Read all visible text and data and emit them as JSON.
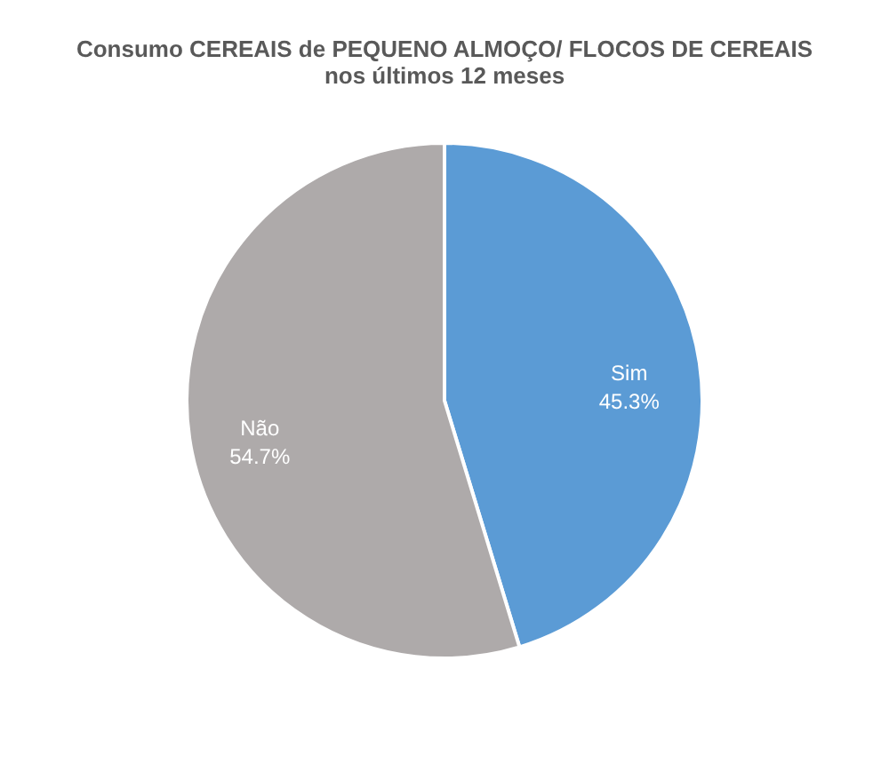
{
  "chart_data": {
    "type": "pie",
    "title": [
      "Consumo CEREAIS de PEQUENO ALMOÇO/ FLOCOS DE CEREAIS",
      "nos últimos 12 meses"
    ],
    "categories": [
      "Sim",
      "Não"
    ],
    "values": [
      45.3,
      54.7
    ],
    "colors": [
      "#5b9bd5",
      "#aeaaaa"
    ],
    "value_labels": [
      "45.3%",
      "54.7%"
    ],
    "legend": false
  }
}
